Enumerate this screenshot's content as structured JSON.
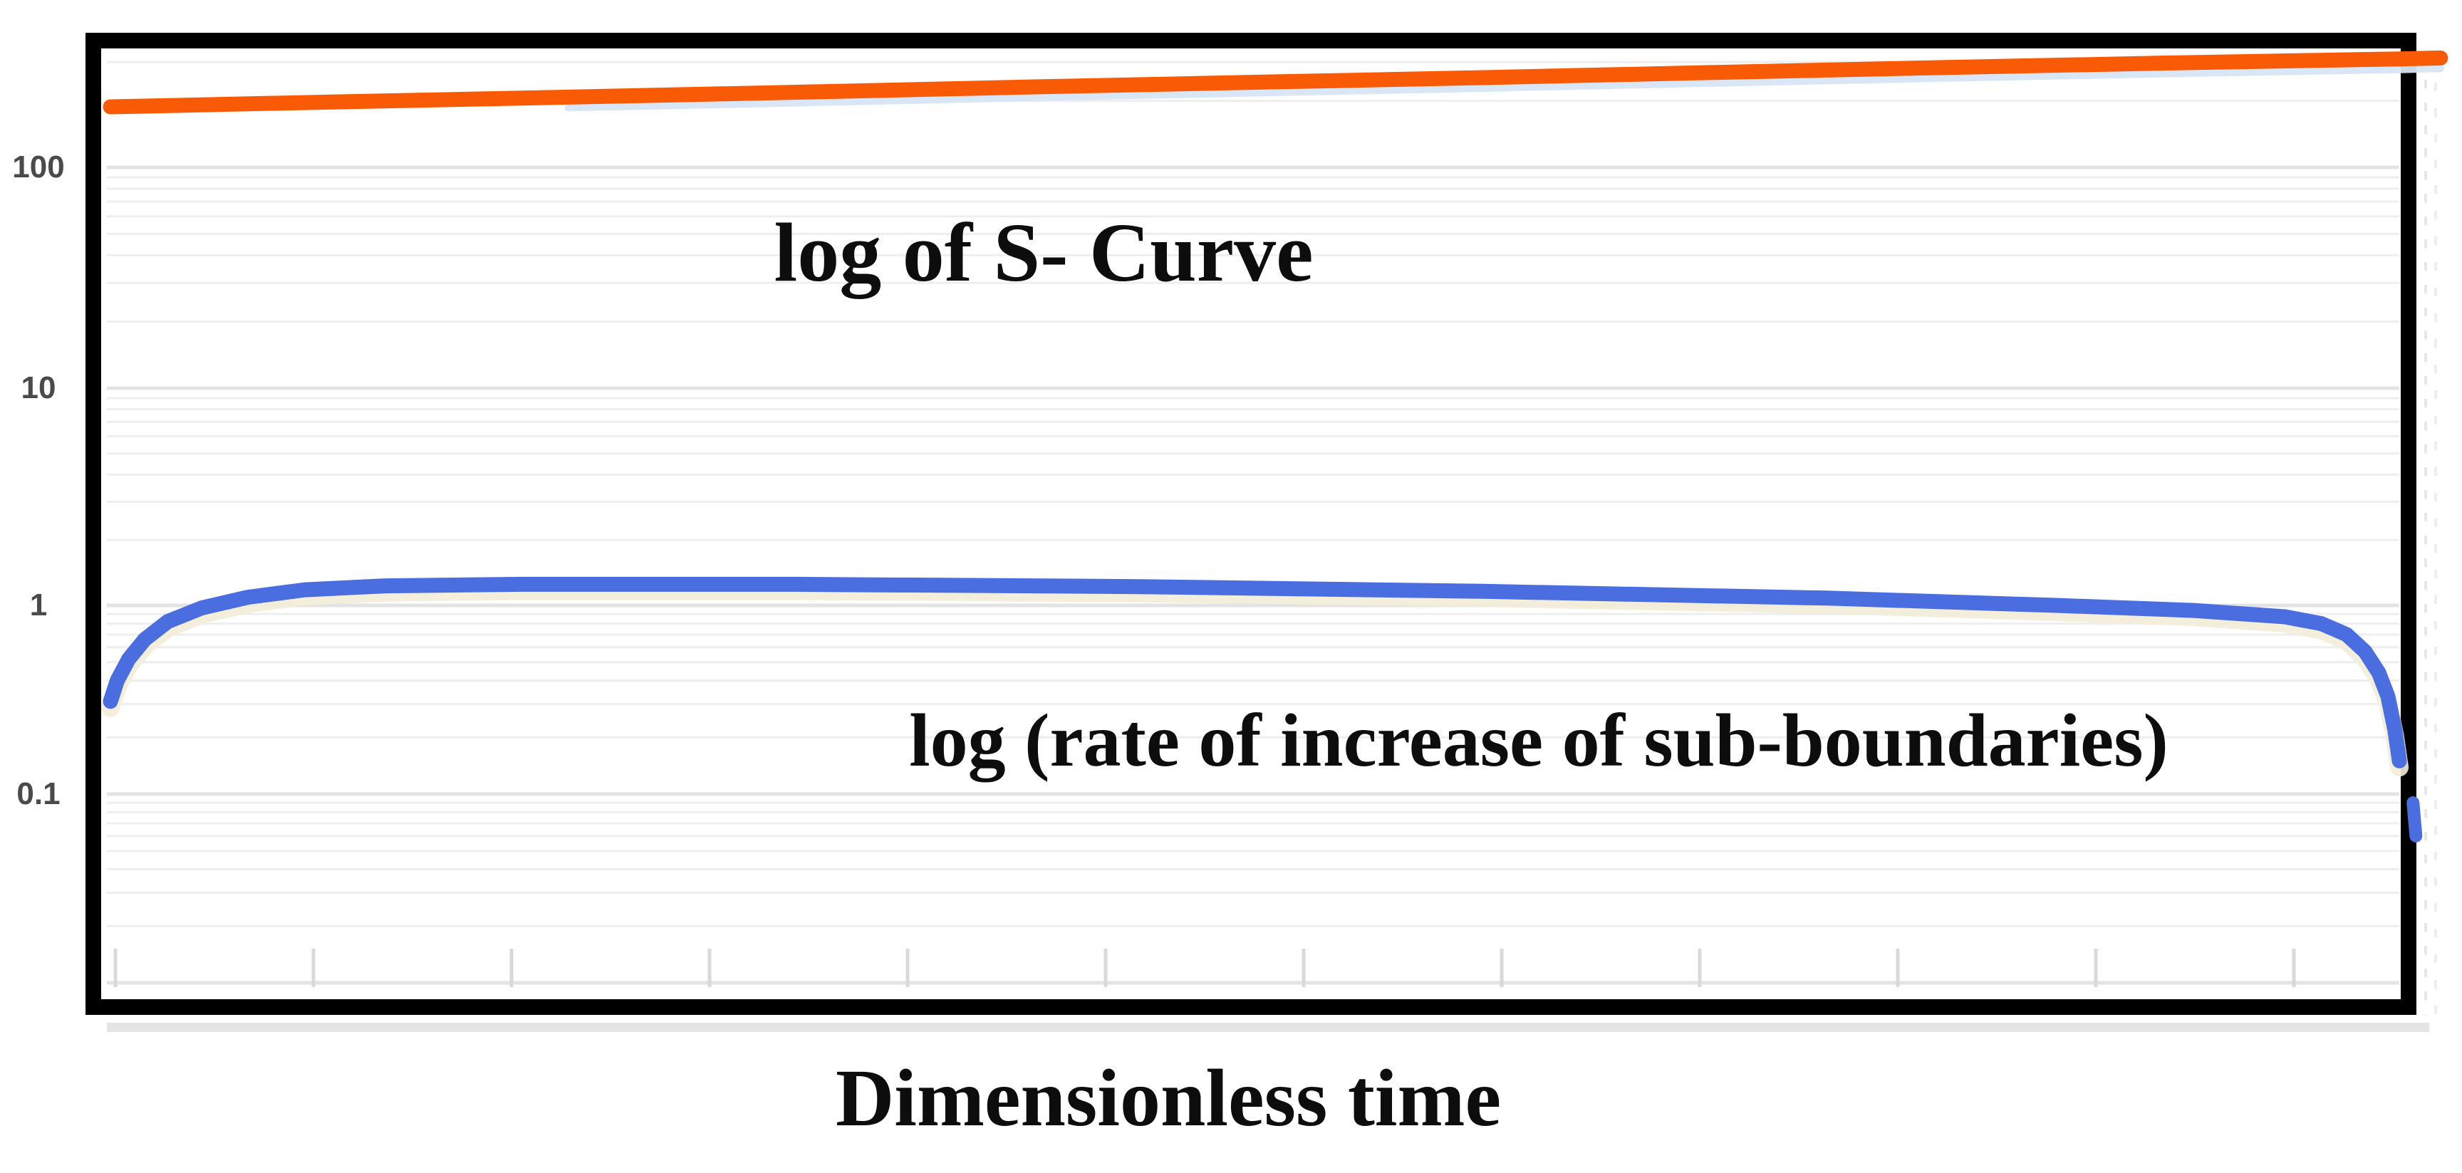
{
  "chart_data": {
    "type": "line",
    "title": "",
    "x_axis": {
      "label": "Dimensionless time",
      "scale": "linear",
      "tick_labels": [],
      "num_unlabeled_ticks": 12
    },
    "y_axis": {
      "scale": "log",
      "tick_labels": [
        "100",
        "10",
        "1",
        "0.1"
      ],
      "range_approx": [
        0.01,
        400
      ]
    },
    "annotations": [
      {
        "id": "s-curve-label",
        "text": "log of S- Curve"
      },
      {
        "id": "rate-label",
        "text": "log (rate of increase of sub-boundaries)"
      }
    ],
    "series": [
      {
        "name": "log of S-Curve",
        "color": "#f85a05",
        "halo_color": "#d7e5f5",
        "x_frac": [
          0,
          0.1,
          0.2,
          0.3,
          0.4,
          0.5,
          0.6,
          0.7,
          0.8,
          0.9,
          1.0,
          1.018
        ],
        "values": [
          188,
          198,
          208,
          219,
          231,
          243,
          255,
          269,
          283,
          297,
          310,
          313
        ]
      },
      {
        "name": "log (rate of increase of sub-boundaries)",
        "color": "#4a6de0",
        "halo_color": "#f3ecd8",
        "x_frac": [
          0.0,
          0.003,
          0.008,
          0.015,
          0.025,
          0.04,
          0.06,
          0.085,
          0.12,
          0.18,
          0.3,
          0.45,
          0.6,
          0.75,
          0.85,
          0.91,
          0.95,
          0.966,
          0.977,
          0.985,
          0.991,
          0.995,
          0.998,
          1.0
        ],
        "values": [
          0.31,
          0.4,
          0.52,
          0.66,
          0.82,
          0.97,
          1.09,
          1.18,
          1.23,
          1.25,
          1.25,
          1.22,
          1.16,
          1.08,
          1.0,
          0.94,
          0.87,
          0.8,
          0.7,
          0.57,
          0.44,
          0.33,
          0.22,
          0.15
        ],
        "tail_blip": {
          "x_frac": 1.006,
          "v_from": 0.09,
          "v_to": 0.06
        }
      }
    ],
    "colors": {
      "grid_minor": "#eeeeee",
      "grid_major": "#e3e3e3",
      "border": "#000000",
      "x_tick": "#d9d9d9",
      "annotation_text": "#0d0d0d",
      "axis_tick_text": "#4a4a4a",
      "shadow": "#cfcfcf"
    }
  }
}
